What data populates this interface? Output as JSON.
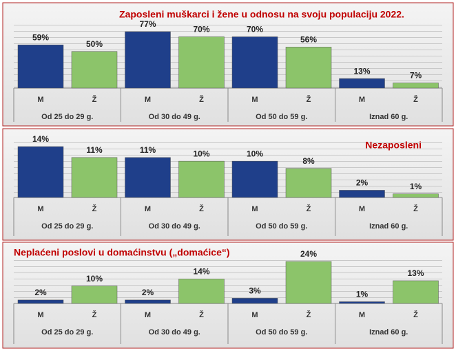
{
  "chart_data": [
    {
      "type": "bar",
      "title": "Zaposleni muškarci i žene u odnosu na svoju populaciju 2022.",
      "categories": [
        "Od 25 do 29 g.",
        "Od 30 do 49 g.",
        "Od 50 do 59 g.",
        "Iznad 60 g."
      ],
      "series": [
        {
          "name": "M",
          "color": "#1f3f8a",
          "values": [
            59,
            77,
            70,
            13
          ],
          "value_labels": [
            "59%",
            "77%",
            "70%",
            "13%"
          ]
        },
        {
          "name": "Ž",
          "color": "#8cc46a",
          "values": [
            50,
            70,
            56,
            7
          ],
          "value_labels": [
            "50%",
            "70%",
            "56%",
            "7%"
          ]
        }
      ]
    },
    {
      "type": "bar",
      "title": "Nezaposleni",
      "categories": [
        "Od 25 do 29 g.",
        "Od 30 do 49 g.",
        "Od 50 do 59 g.",
        "Iznad 60 g."
      ],
      "series": [
        {
          "name": "M",
          "color": "#1f3f8a",
          "values": [
            14,
            11,
            10,
            2
          ],
          "value_labels": [
            "14%",
            "11%",
            "10%",
            "2%"
          ]
        },
        {
          "name": "Ž",
          "color": "#8cc46a",
          "values": [
            11,
            10,
            8,
            1
          ],
          "value_labels": [
            "11%",
            "10%",
            "8%",
            "1%"
          ]
        }
      ]
    },
    {
      "type": "bar",
      "title": "Neplaćeni poslovi u domaćinstvu („domaćice“)",
      "categories": [
        "Od 25 do 29 g.",
        "Od 30 do 49 g.",
        "Od 50 do 59 g.",
        "Iznad 60 g."
      ],
      "series": [
        {
          "name": "M",
          "color": "#1f3f8a",
          "values": [
            2,
            2,
            3,
            1
          ],
          "value_labels": [
            "2%",
            "2%",
            "3%",
            "1%"
          ]
        },
        {
          "name": "Ž",
          "color": "#8cc46a",
          "values": [
            10,
            14,
            24,
            13
          ],
          "value_labels": [
            "10%",
            "14%",
            "24%",
            "13%"
          ]
        }
      ]
    }
  ]
}
